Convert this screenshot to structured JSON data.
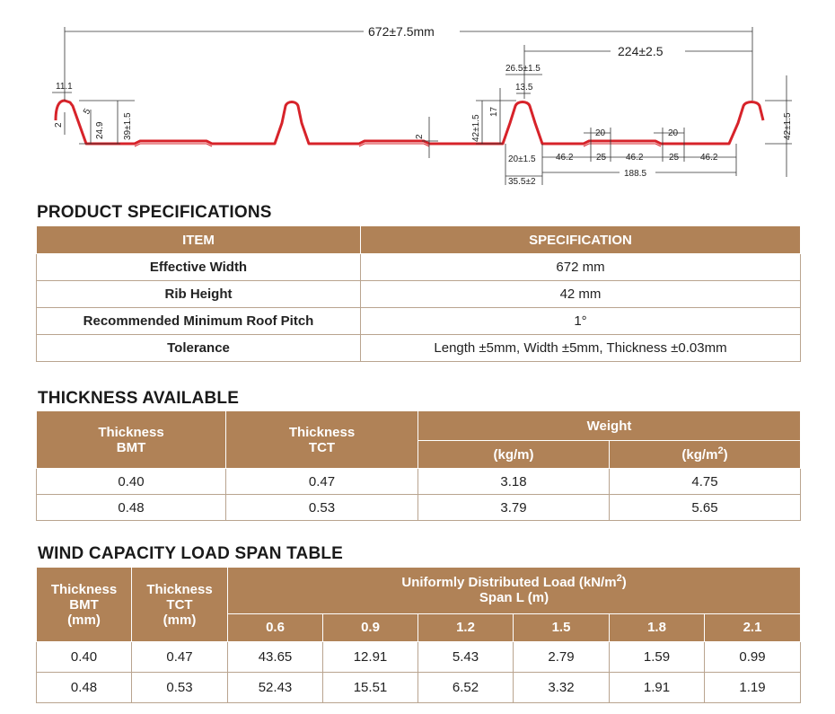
{
  "drawing": {
    "dims": {
      "overall": "672±7.5mm",
      "pitch": "224±2.5",
      "rib_top": "26.5±1.5",
      "rib_top_inner": "13.5",
      "rib_top_small": "11.1",
      "height_left": "24.9",
      "height_39": "39±1.5",
      "depth_2": "2",
      "height_left_2": "2",
      "rib_height_17": "17",
      "rib_height_42": "42±1.5",
      "rib_height_42_right": "42±1.5",
      "base_20": "20±1.5",
      "base_35": "35.5±2",
      "pan_46a": "46.2",
      "pan_46b": "46.2",
      "pan_46c": "46.2",
      "pan_25a": "25",
      "pan_25b": "25",
      "pan_20a": "20",
      "pan_20b": "20",
      "pan_188": "188.5",
      "angle_5": "5"
    }
  },
  "product": {
    "title": "PRODUCT SPECIFICATIONS",
    "headers": [
      "ITEM",
      "SPECIFICATION"
    ],
    "rows": [
      {
        "item": "Effective Width",
        "spec": "672 mm"
      },
      {
        "item": "Rib Height",
        "spec": "42 mm"
      },
      {
        "item": "Recommended Minimum Roof Pitch",
        "spec": "1°"
      },
      {
        "item": "Tolerance",
        "spec": "Length ±5mm, Width ±5mm, Thickness ±0.03mm"
      }
    ]
  },
  "thickness": {
    "title": "THICKNESS AVAILABLE",
    "h_bmt_1": "Thickness",
    "h_bmt_2": "BMT",
    "h_tct_1": "Thickness",
    "h_tct_2": "TCT",
    "h_weight": "Weight",
    "h_kgm": "(kg/m)",
    "h_kgm2_base": "(kg/m",
    "h_kgm2_sup": "2",
    "h_kgm2_end": ")",
    "rows": [
      {
        "bmt": "0.40",
        "tct": "0.47",
        "kgm": "3.18",
        "kgm2": "4.75"
      },
      {
        "bmt": "0.48",
        "tct": "0.53",
        "kgm": "3.79",
        "kgm2": "5.65"
      }
    ]
  },
  "wind": {
    "title": "WIND CAPACITY LOAD SPAN TABLE",
    "h_bmt_1": "Thickness",
    "h_bmt_2": "BMT",
    "h_bmt_3": "(mm)",
    "h_tct_1": "Thickness",
    "h_tct_2": "TCT",
    "h_tct_3": "(mm)",
    "h_load_base": "Uniformly Distributed Load (kN/m",
    "h_load_sup": "2",
    "h_load_end": ")",
    "h_span": "Span L (m)",
    "spans": [
      "0.6",
      "0.9",
      "1.2",
      "1.5",
      "1.8",
      "2.1"
    ],
    "rows": [
      {
        "bmt": "0.40",
        "tct": "0.47",
        "values": [
          "43.65",
          "12.91",
          "5.43",
          "2.79",
          "1.59",
          "0.99"
        ]
      },
      {
        "bmt": "0.48",
        "tct": "0.53",
        "values": [
          "52.43",
          "15.51",
          "6.52",
          "3.32",
          "1.91",
          "1.19"
        ]
      }
    ]
  },
  "colors": {
    "header_bg": "#b08257",
    "profile_line": "#d7232a",
    "border": "#b9a48f"
  }
}
